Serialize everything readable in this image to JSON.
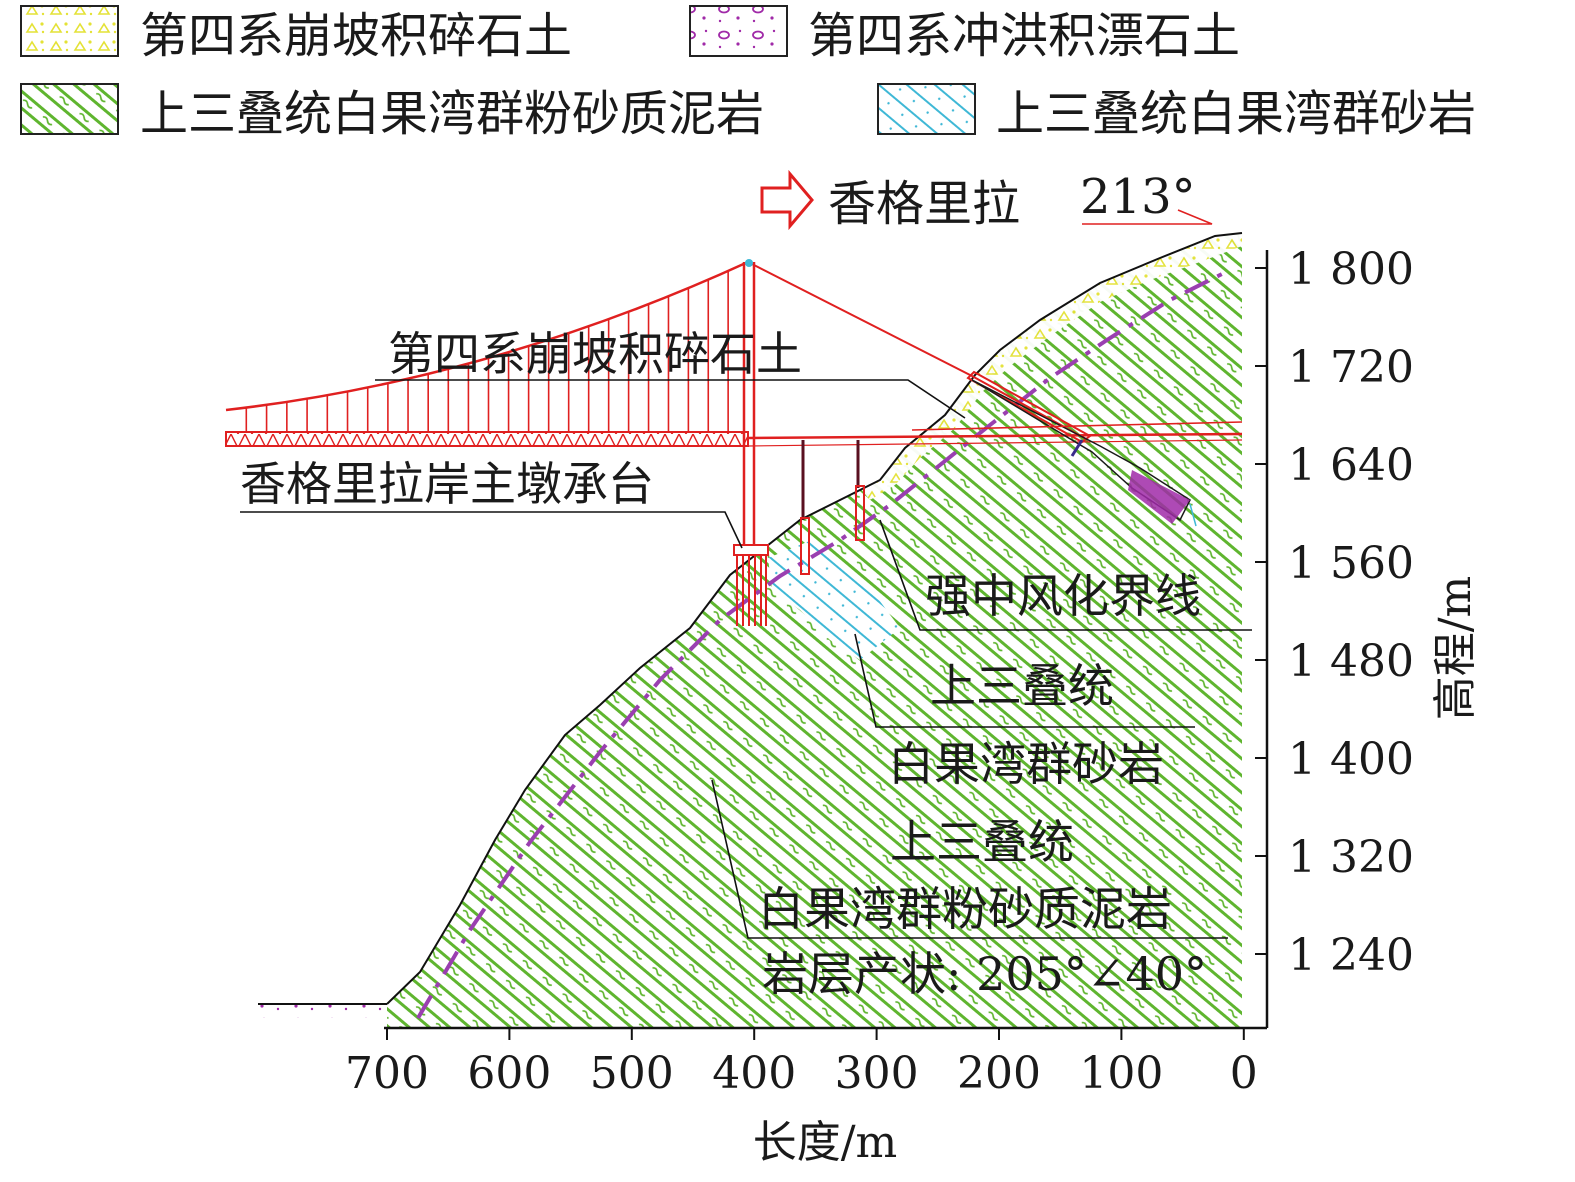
{
  "legend": [
    {
      "key": "colluvial",
      "label": "第四系崩坡积碎石土",
      "color": "#f0ee4a"
    },
    {
      "key": "alluvial",
      "label": "第四系冲洪积漂石土",
      "color": "#a02aa8"
    },
    {
      "key": "siltstone",
      "label": "上三叠统白果湾群粉砂质泥岩",
      "color": "#5fb52f"
    },
    {
      "key": "sandstone",
      "label": "上三叠统白果湾群砂岩",
      "color": "#3fb8d6"
    }
  ],
  "direction": {
    "label": "香格里拉",
    "azimuth": "213°",
    "arrow_color": "#e02020"
  },
  "axes": {
    "x_title": "长度/m",
    "y_title": "高程/m",
    "x_ticks": [
      "700",
      "600",
      "500",
      "400",
      "300",
      "200",
      "100",
      "0"
    ],
    "y_ticks": [
      "1 800",
      "1 720",
      "1 640",
      "1 560",
      "1 480",
      "1 400",
      "1 320",
      "1 240"
    ]
  },
  "annotations": {
    "colluvial": "第四系崩坡积碎石土",
    "pier_cap": "香格里拉岸主墩承台",
    "weathering_line": "强中风化界线",
    "sandstone_1": "上三叠统",
    "sandstone_2": "白果湾群砂岩",
    "siltstone_1": "上三叠统",
    "siltstone_2": "白果湾群粉砂质泥岩",
    "attitude": "岩层产状: 205°∠40°"
  },
  "colors": {
    "bridge": "#e02020",
    "weathering": "#9a3fb0",
    "outline": "#111111"
  }
}
